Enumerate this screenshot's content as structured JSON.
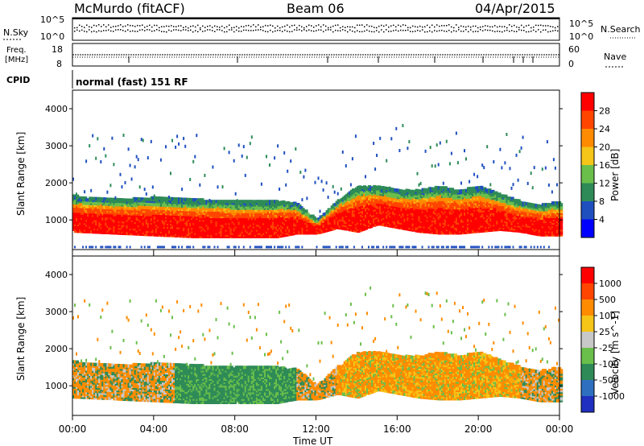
{
  "header": {
    "station": "McMurdo (fitACF)",
    "beam": "Beam 06",
    "date": "04/Apr/2015"
  },
  "noise_panel": {
    "left_label": "N.Sky",
    "right_label": "N.Search",
    "left_ticks": [
      "10^5",
      "10^0"
    ],
    "right_ticks": [
      "10^5",
      "10^0"
    ]
  },
  "freq_panel": {
    "label_line1": "Freq.",
    "label_line2": "[MHz]",
    "left_ticks": [
      "18",
      "8"
    ],
    "right_label": "Nave",
    "right_ticks": [
      "60",
      "0"
    ]
  },
  "cpid": {
    "label": "CPID",
    "value": "normal (fast) 151 RF"
  },
  "x_axis": {
    "label": "Time UT",
    "ticks": [
      "00:00",
      "04:00",
      "08:00",
      "12:00",
      "16:00",
      "20:00",
      "00:00"
    ]
  },
  "chart_data": [
    {
      "type": "heatmap",
      "quantity": "Power",
      "ylabel": "Slant Range [km]",
      "colorbar_label": "Power [dB]",
      "colorbar_ticks": [
        "28",
        "24",
        "20",
        "16",
        "12",
        "8",
        "4"
      ],
      "colorbar_colors": [
        "#0000ff",
        "#1f4fbf",
        "#2e8b57",
        "#6abf4b",
        "#f5c518",
        "#ff8c00",
        "#ff4500",
        "#ff0000"
      ],
      "yticks": [
        "4000",
        "3000",
        "2000",
        "1000"
      ],
      "ylim": [
        200,
        4500
      ],
      "xlim_hours": [
        0,
        24
      ],
      "main_band": {
        "hours": [
          0,
          2,
          4,
          6,
          8,
          10,
          11,
          12,
          13,
          14,
          15,
          16,
          17,
          18,
          19,
          20,
          21,
          22,
          23,
          24
        ],
        "lower_km": [
          700,
          650,
          600,
          550,
          550,
          550,
          650,
          650,
          800,
          700,
          900,
          800,
          700,
          650,
          650,
          700,
          750,
          700,
          600,
          600
        ],
        "upper_km": [
          1650,
          1550,
          1600,
          1550,
          1500,
          1500,
          1450,
          1000,
          1500,
          1900,
          1900,
          1800,
          1800,
          1900,
          1800,
          1900,
          1700,
          1500,
          1400,
          1500
        ]
      }
    },
    {
      "type": "heatmap",
      "quantity": "Velocity",
      "ylabel": "Slant Range [km]",
      "colorbar_label": "Velocity [m s^-1]",
      "colorbar_ticks": [
        "1000",
        "500",
        "100",
        "25",
        "-25",
        "-100",
        "-500",
        "-1000"
      ],
      "colorbar_colors": [
        "#1f2fbf",
        "#2e6fbf",
        "#2e8b57",
        "#6abf4b",
        "#c8c8c8",
        "#f5c518",
        "#ff8c00",
        "#ff4500",
        "#ff0000"
      ],
      "yticks": [
        "4000",
        "3000",
        "2000",
        "1000"
      ],
      "ylim": [
        200,
        4500
      ],
      "xlim_hours": [
        0,
        24
      ]
    }
  ]
}
